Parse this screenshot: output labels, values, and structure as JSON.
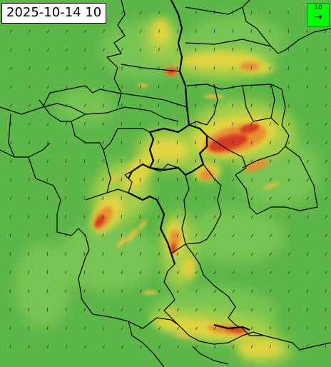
{
  "timestamp": "2025-10-14 10",
  "legend": {
    "value": "10",
    "icon": "right-arrow-icon"
  },
  "colors": {
    "background": "#5fb84a",
    "low": "#6cc04f",
    "mid": "#b8d24a",
    "high_yellow": "#e8d640",
    "orange": "#e89030",
    "red": "#d83a20",
    "dark_red": "#b51f14",
    "legend_bg": "#00ff00",
    "border": "#000000"
  }
}
